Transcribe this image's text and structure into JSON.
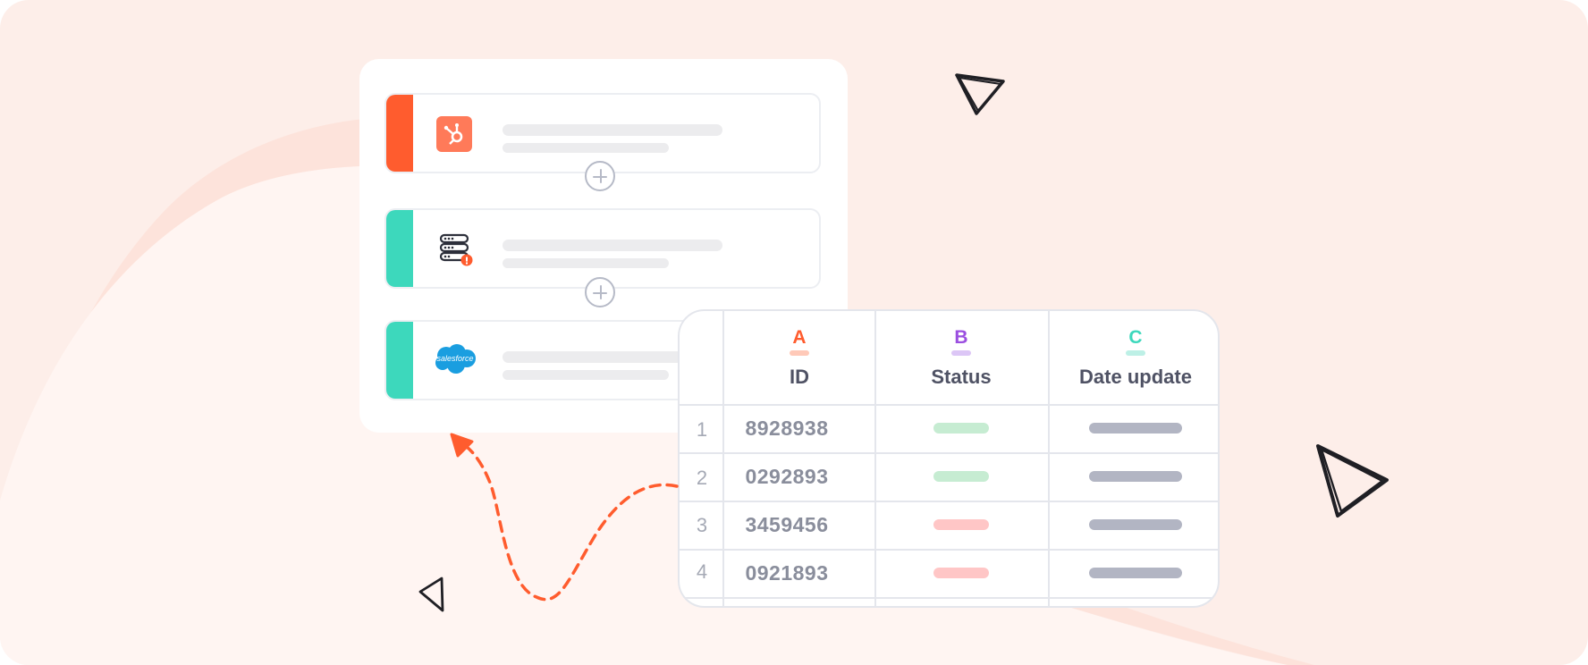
{
  "colors": {
    "background": "#fdeee9",
    "accent_orange": "#ff5c2e",
    "accent_teal": "#3dd8bc",
    "status_green": "#c6ecd2",
    "status_red": "#ffc6c6",
    "date_gray": "#b2b5c3"
  },
  "integrations": [
    {
      "icon": "hubspot-icon",
      "stripe_color": "#ff5c2e"
    },
    {
      "icon": "database-icon",
      "stripe_color": "#3dd8bc"
    },
    {
      "icon": "salesforce-icon",
      "stripe_color": "#3dd8bc",
      "logo_text": "salesforce"
    }
  ],
  "table": {
    "columns": [
      {
        "letter": "A",
        "header": "ID",
        "color": "#ff5c2e"
      },
      {
        "letter": "B",
        "header": "Status",
        "color": "#9b4fe0"
      },
      {
        "letter": "C",
        "header": "Date update",
        "color": "#3dd8bc"
      }
    ],
    "rows": [
      {
        "num": "1",
        "id": "8928938",
        "status": "green"
      },
      {
        "num": "2",
        "id": "0292893",
        "status": "green"
      },
      {
        "num": "3",
        "id": "3459456",
        "status": "red"
      },
      {
        "num": "4",
        "id": "0921893",
        "status": "red"
      }
    ]
  }
}
